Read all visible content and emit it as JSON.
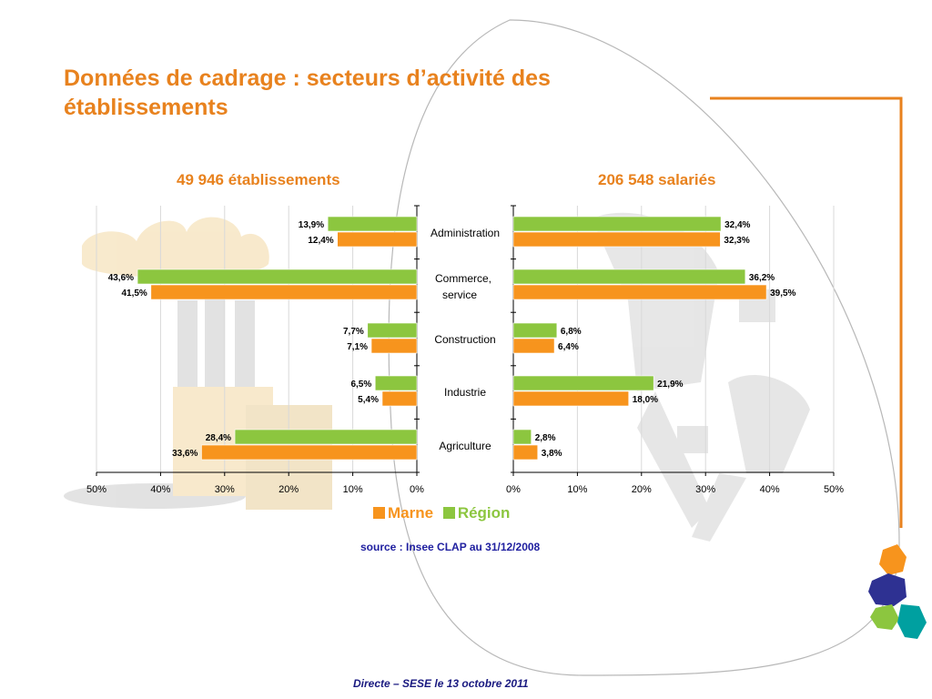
{
  "slide": {
    "title": "Données de cadrage : secteurs d’activité des établissements",
    "source": "source : Insee CLAP au 31/12/2008",
    "footer": "Directe – SESE le 13 octobre 2011"
  },
  "colors": {
    "marne": "#f7941d",
    "region": "#8cc63f",
    "accent": "#e8821e"
  },
  "legend": [
    {
      "name": "Marne",
      "color": "#f7941d"
    },
    {
      "name": "Région",
      "color": "#8cc63f"
    }
  ],
  "chart_data": [
    {
      "type": "bar",
      "orientation": "horizontal",
      "title": "49 946 établissements",
      "categories": [
        "Administration",
        "Commerce, service",
        "Construction",
        "Industrie",
        "Agriculture"
      ],
      "series": [
        {
          "name": "Région",
          "values": [
            13.9,
            43.6,
            7.7,
            6.5,
            28.4
          ]
        },
        {
          "name": "Marne",
          "values": [
            12.4,
            41.5,
            7.1,
            5.4,
            33.6
          ]
        }
      ],
      "xlim": [
        0,
        50
      ],
      "x_direction": "reversed",
      "ticks": [
        "50%",
        "40%",
        "30%",
        "20%",
        "10%",
        "0%"
      ],
      "grid": true,
      "legend": "bottom"
    },
    {
      "type": "bar",
      "orientation": "horizontal",
      "title": "206 548 salariés",
      "categories": [
        "Administration",
        "Commerce, service",
        "Construction",
        "Industrie",
        "Agriculture"
      ],
      "series": [
        {
          "name": "Région",
          "values": [
            32.4,
            36.2,
            6.8,
            21.9,
            2.8
          ]
        },
        {
          "name": "Marne",
          "values": [
            32.3,
            39.5,
            6.4,
            18.0,
            3.8
          ]
        }
      ],
      "xlim": [
        0,
        50
      ],
      "ticks": [
        "0%",
        "10%",
        "20%",
        "30%",
        "40%",
        "50%"
      ],
      "grid": true,
      "legend": "bottom"
    }
  ]
}
